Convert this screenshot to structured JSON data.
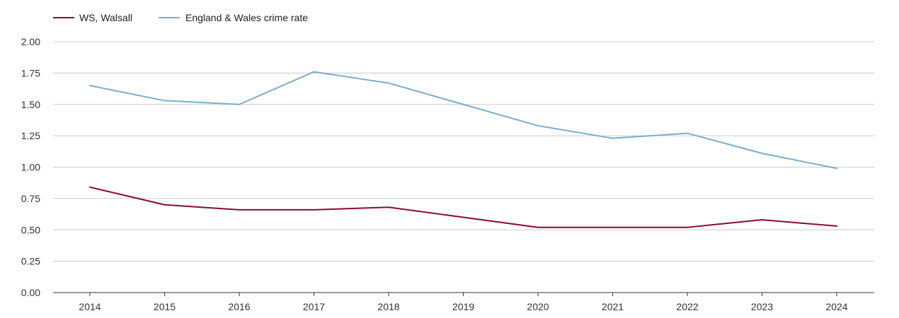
{
  "chart_data": {
    "type": "line",
    "title": "",
    "xlabel": "",
    "ylabel": "",
    "categories": [
      "2014",
      "2015",
      "2016",
      "2017",
      "2018",
      "2019",
      "2020",
      "2021",
      "2022",
      "2023",
      "2024"
    ],
    "ylim": [
      0,
      2
    ],
    "yticks": [
      "0.00",
      "0.25",
      "0.50",
      "0.75",
      "1.00",
      "1.25",
      "1.50",
      "1.75",
      "2.00"
    ],
    "grid": true,
    "legend_position": "top-left",
    "series": [
      {
        "name": "WS, Walsall",
        "color": "#8b0a2e",
        "values": [
          0.84,
          0.7,
          0.66,
          0.66,
          0.68,
          0.6,
          0.52,
          0.52,
          0.52,
          0.58,
          0.53
        ]
      },
      {
        "name": "England & Wales crime rate",
        "color": "#7aadcf",
        "values": [
          1.65,
          1.53,
          1.5,
          1.76,
          1.67,
          1.5,
          1.33,
          1.23,
          1.27,
          1.11,
          0.99
        ]
      }
    ]
  }
}
